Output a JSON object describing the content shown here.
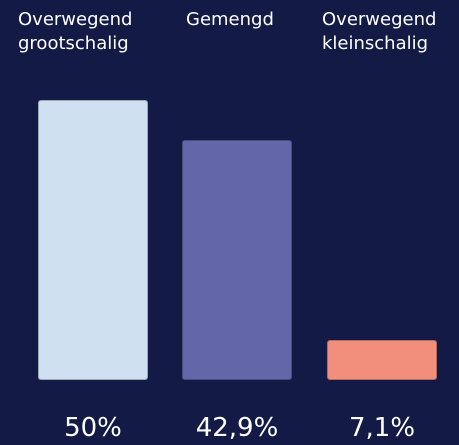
{
  "chart_data": {
    "type": "bar",
    "categories": [
      "Overwegend grootschalig",
      "Gemengd",
      "Overwegend kleinschalig"
    ],
    "values": [
      50,
      42.9,
      7.1
    ],
    "value_labels": [
      "50%",
      "42,9%",
      "7,1%"
    ],
    "colors": [
      "#cfe0f0",
      "#6366a8",
      "#f28e7c"
    ],
    "ylim": [
      0,
      50
    ]
  }
}
